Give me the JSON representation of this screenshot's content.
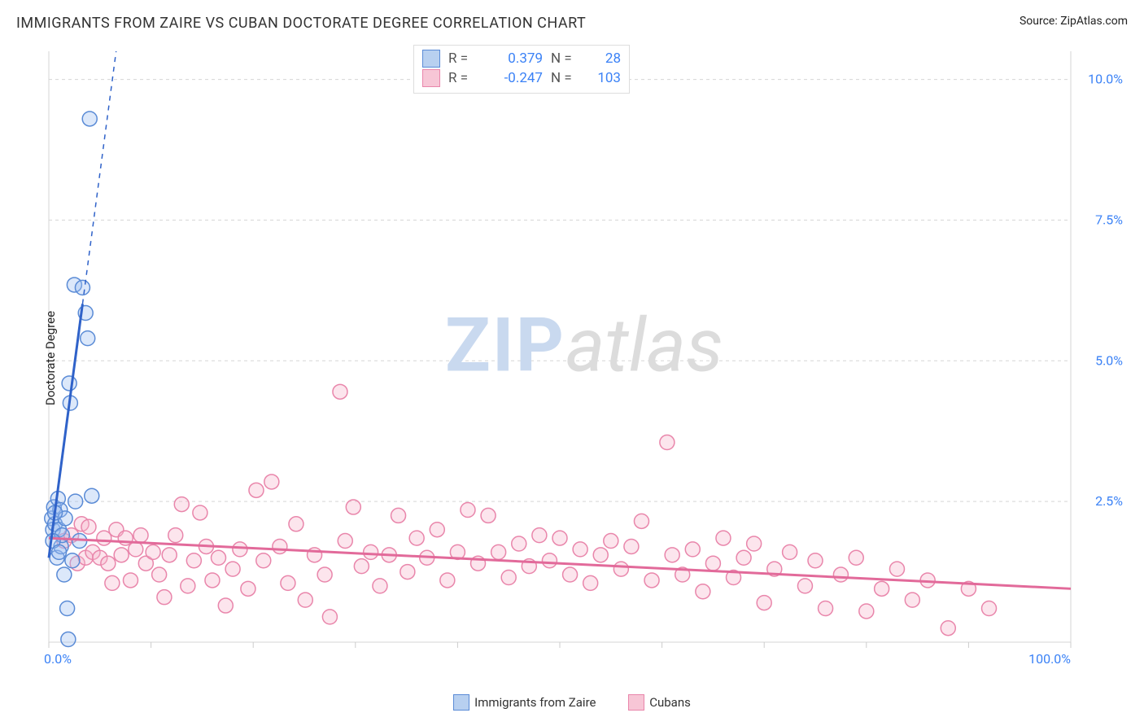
{
  "title": "IMMIGRANTS FROM ZAIRE VS CUBAN DOCTORATE DEGREE CORRELATION CHART",
  "source_label": "Source: ZipAtlas.com",
  "y_axis_label": "Doctorate Degree",
  "watermark_part1": "ZIP",
  "watermark_part2": "atlas",
  "chart": {
    "type": "scatter",
    "xlim": [
      0,
      100
    ],
    "ylim": [
      0,
      10.5
    ],
    "x_ticks_minor_step": 10,
    "x_tick_labels": [
      {
        "x": 0,
        "label": "0.0%"
      },
      {
        "x": 100,
        "label": "100.0%"
      }
    ],
    "y_grid": [
      {
        "y": 2.5,
        "label": "2.5%"
      },
      {
        "y": 5.0,
        "label": "5.0%"
      },
      {
        "y": 7.5,
        "label": "7.5%"
      },
      {
        "y": 10.0,
        "label": "10.0%"
      }
    ],
    "background_color": "#ffffff",
    "grid_color": "#d5d5d5",
    "grid_dash": "4 4",
    "marker_radius": 9,
    "marker_stroke_width": 1.5,
    "marker_fill_opacity": 0.35
  },
  "series": {
    "zaire": {
      "label": "Immigrants from Zaire",
      "color_fill": "#9abcf0",
      "color_stroke": "#5a8bd6",
      "trend_color": "#2f62c9",
      "trend_width": 3,
      "trend_dash_after_x": 3.3,
      "trend": {
        "x1": 0,
        "y1": 1.5,
        "x2": 15,
        "y2": 22
      },
      "stats": {
        "R": "0.379",
        "N": "28"
      },
      "points": [
        [
          0.3,
          2.2
        ],
        [
          0.4,
          2.0
        ],
        [
          0.5,
          2.4
        ],
        [
          0.6,
          2.1
        ],
        [
          0.8,
          1.5
        ],
        [
          0.9,
          2.55
        ],
        [
          1.0,
          2.0
        ],
        [
          1.1,
          2.35
        ],
        [
          1.2,
          1.7
        ],
        [
          1.3,
          1.9
        ],
        [
          1.5,
          1.2
        ],
        [
          1.6,
          2.2
        ],
        [
          1.8,
          0.6
        ],
        [
          1.9,
          0.05
        ],
        [
          2.0,
          4.6
        ],
        [
          2.1,
          4.25
        ],
        [
          2.3,
          1.45
        ],
        [
          2.5,
          6.35
        ],
        [
          2.6,
          2.5
        ],
        [
          3.0,
          1.8
        ],
        [
          3.3,
          6.3
        ],
        [
          3.6,
          5.85
        ],
        [
          3.8,
          5.4
        ],
        [
          4.0,
          9.3
        ],
        [
          4.2,
          2.6
        ],
        [
          0.4,
          1.8
        ],
        [
          0.6,
          2.3
        ],
        [
          1.0,
          1.6
        ]
      ]
    },
    "cubans": {
      "label": "Cubans",
      "color_fill": "#f6b4ca",
      "color_stroke": "#e986ab",
      "trend_color": "#e26a9a",
      "trend_width": 3,
      "trend": {
        "x1": 0,
        "y1": 1.85,
        "x2": 100,
        "y2": 0.95
      },
      "stats": {
        "R": "-0.247",
        "N": "103"
      },
      "points": [
        [
          1.5,
          1.8
        ],
        [
          2.2,
          1.9
        ],
        [
          2.8,
          1.4
        ],
        [
          3.2,
          2.1
        ],
        [
          3.6,
          1.5
        ],
        [
          3.9,
          2.05
        ],
        [
          4.3,
          1.6
        ],
        [
          5.0,
          1.5
        ],
        [
          5.4,
          1.85
        ],
        [
          5.8,
          1.4
        ],
        [
          6.2,
          1.05
        ],
        [
          6.6,
          2.0
        ],
        [
          7.1,
          1.55
        ],
        [
          7.5,
          1.85
        ],
        [
          8.0,
          1.1
        ],
        [
          8.5,
          1.65
        ],
        [
          9.0,
          1.9
        ],
        [
          9.5,
          1.4
        ],
        [
          10.2,
          1.6
        ],
        [
          10.8,
          1.2
        ],
        [
          11.3,
          0.8
        ],
        [
          11.8,
          1.55
        ],
        [
          12.4,
          1.9
        ],
        [
          13.0,
          2.45
        ],
        [
          13.6,
          1.0
        ],
        [
          14.2,
          1.45
        ],
        [
          14.8,
          2.3
        ],
        [
          15.4,
          1.7
        ],
        [
          16.0,
          1.1
        ],
        [
          16.6,
          1.5
        ],
        [
          17.3,
          0.65
        ],
        [
          18.0,
          1.3
        ],
        [
          18.7,
          1.65
        ],
        [
          19.5,
          0.95
        ],
        [
          20.3,
          2.7
        ],
        [
          21.0,
          1.45
        ],
        [
          21.8,
          2.85
        ],
        [
          22.6,
          1.7
        ],
        [
          23.4,
          1.05
        ],
        [
          24.2,
          2.1
        ],
        [
          25.1,
          0.75
        ],
        [
          26.0,
          1.55
        ],
        [
          27.0,
          1.2
        ],
        [
          27.5,
          0.45
        ],
        [
          28.5,
          4.45
        ],
        [
          29.0,
          1.8
        ],
        [
          29.8,
          2.4
        ],
        [
          30.6,
          1.35
        ],
        [
          31.5,
          1.6
        ],
        [
          32.4,
          1.0
        ],
        [
          33.3,
          1.55
        ],
        [
          34.2,
          2.25
        ],
        [
          35.1,
          1.25
        ],
        [
          36.0,
          1.85
        ],
        [
          37.0,
          1.5
        ],
        [
          38.0,
          2.0
        ],
        [
          39.0,
          1.1
        ],
        [
          40.0,
          1.6
        ],
        [
          41.0,
          2.35
        ],
        [
          42.0,
          1.4
        ],
        [
          43.0,
          2.25
        ],
        [
          44.0,
          1.6
        ],
        [
          45.0,
          1.15
        ],
        [
          46.0,
          1.75
        ],
        [
          47.0,
          1.35
        ],
        [
          48.0,
          1.9
        ],
        [
          49.0,
          1.45
        ],
        [
          50.0,
          1.85
        ],
        [
          51.0,
          1.2
        ],
        [
          52.0,
          1.65
        ],
        [
          53.0,
          1.05
        ],
        [
          54.0,
          1.55
        ],
        [
          55.0,
          1.8
        ],
        [
          56.0,
          1.3
        ],
        [
          57.0,
          1.7
        ],
        [
          58.0,
          2.15
        ],
        [
          59.0,
          1.1
        ],
        [
          60.5,
          3.55
        ],
        [
          61.0,
          1.55
        ],
        [
          62.0,
          1.2
        ],
        [
          63.0,
          1.65
        ],
        [
          64.0,
          0.9
        ],
        [
          65.0,
          1.4
        ],
        [
          66.0,
          1.85
        ],
        [
          67.0,
          1.15
        ],
        [
          68.0,
          1.5
        ],
        [
          69.0,
          1.75
        ],
        [
          70.0,
          0.7
        ],
        [
          71.0,
          1.3
        ],
        [
          72.5,
          1.6
        ],
        [
          74.0,
          1.0
        ],
        [
          75.0,
          1.45
        ],
        [
          76.0,
          0.6
        ],
        [
          77.5,
          1.2
        ],
        [
          79.0,
          1.5
        ],
        [
          80.0,
          0.55
        ],
        [
          81.5,
          0.95
        ],
        [
          83.0,
          1.3
        ],
        [
          84.5,
          0.75
        ],
        [
          86.0,
          1.1
        ],
        [
          88.0,
          0.25
        ],
        [
          90.0,
          0.95
        ],
        [
          92.0,
          0.6
        ]
      ]
    }
  },
  "legend_bottom": [
    {
      "key": "zaire",
      "label": "Immigrants from Zaire"
    },
    {
      "key": "cubans",
      "label": "Cubans"
    }
  ]
}
